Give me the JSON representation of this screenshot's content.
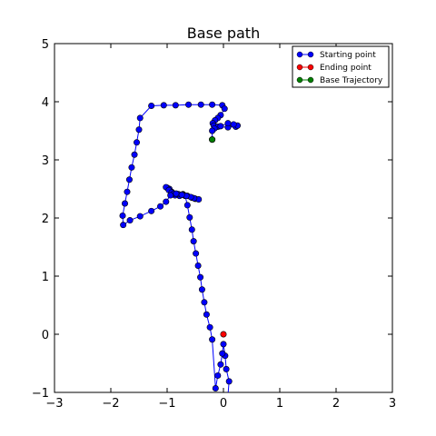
{
  "chart_data": {
    "type": "scatter",
    "title": "Base path",
    "xlabel": "",
    "ylabel": "",
    "xlim": [
      -3,
      3
    ],
    "ylim": [
      -1,
      5
    ],
    "xticks": [
      "−3",
      "−2",
      "−1",
      "0",
      "1",
      "2",
      "3"
    ],
    "yticks": [
      "−1",
      "0",
      "1",
      "2",
      "3",
      "4",
      "5"
    ],
    "grid": false,
    "legend_position": "top-right",
    "legend": [
      {
        "label": "Starting point",
        "color": "#0000ff"
      },
      {
        "label": "Ending point",
        "color": "#ff0000"
      },
      {
        "label": "Base Trajectory",
        "color": "#007f00"
      }
    ],
    "series": [
      {
        "name": "Starting point",
        "color": "#0000ff",
        "marker": "circle",
        "line": true,
        "x": [
          0.08,
          0.1,
          0.05,
          0.03,
          0.0,
          -0.02,
          -0.05,
          -0.1,
          -0.14,
          -0.2,
          -0.24,
          -0.3,
          -0.34,
          -0.38,
          -0.41,
          -0.45,
          -0.49,
          -0.53,
          -0.56,
          -0.6,
          -0.64,
          -0.68,
          -0.72,
          -0.78,
          -0.86,
          -0.92,
          -0.96,
          -1.0,
          -1.02,
          -0.97,
          -0.92,
          -0.88,
          -0.8,
          -0.72,
          -0.64,
          -0.56,
          -0.5,
          -0.44,
          -0.52,
          -0.58,
          -0.66,
          -0.74,
          -0.84,
          -0.94,
          -1.02,
          -1.12,
          -1.28,
          -1.48,
          -1.66,
          -1.78,
          -1.79,
          -1.75,
          -1.71,
          -1.67,
          -1.63,
          -1.58,
          -1.54,
          -1.5,
          -1.48,
          -1.28,
          -1.06,
          -0.85,
          -0.62,
          -0.4,
          -0.2,
          -0.02,
          0.02,
          -0.05,
          -0.1,
          -0.15,
          -0.19,
          -0.17,
          -0.1,
          0.08,
          0.22,
          0.25,
          0.18,
          0.08,
          -0.05,
          -0.16,
          -0.2,
          -0.2
        ],
        "y": [
          -1.05,
          -0.81,
          -0.6,
          -0.37,
          -0.17,
          -0.33,
          -0.52,
          -0.71,
          -0.93,
          -0.09,
          0.12,
          0.34,
          0.55,
          0.77,
          0.98,
          1.18,
          1.39,
          1.6,
          1.8,
          2.01,
          2.22,
          2.38,
          2.41,
          2.38,
          2.39,
          2.45,
          2.5,
          2.52,
          2.53,
          2.48,
          2.44,
          2.42,
          2.41,
          2.4,
          2.38,
          2.35,
          2.33,
          2.32,
          2.34,
          2.36,
          2.38,
          2.4,
          2.42,
          2.39,
          2.28,
          2.2,
          2.12,
          2.03,
          1.96,
          1.88,
          2.04,
          2.25,
          2.45,
          2.66,
          2.87,
          3.09,
          3.3,
          3.52,
          3.72,
          3.93,
          3.94,
          3.94,
          3.95,
          3.95,
          3.95,
          3.94,
          3.88,
          3.77,
          3.72,
          3.68,
          3.63,
          3.59,
          3.57,
          3.56,
          3.57,
          3.59,
          3.61,
          3.63,
          3.58,
          3.54,
          3.5,
          3.35
        ]
      },
      {
        "name": "Ending point",
        "color": "#ff0000",
        "marker": "circle",
        "line": false,
        "x": [
          0.0
        ],
        "y": [
          0.0
        ]
      },
      {
        "name": "Base Trajectory",
        "color": "#007f00",
        "marker": "circle",
        "line": false,
        "x": [
          -0.2
        ],
        "y": [
          3.35
        ]
      }
    ]
  }
}
